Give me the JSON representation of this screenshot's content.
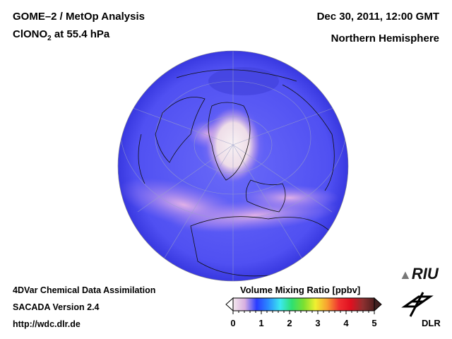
{
  "header": {
    "title": "GOME–2 / MetOp Analysis",
    "species": "ClONO",
    "species_sub": "2",
    "level": " at 55.4 hPa",
    "datetime": "Dec 30, 2011, 12:00 GMT",
    "region": "Northern Hemisphere"
  },
  "footer": {
    "line1": "4DVar Chemical Data Assimilation",
    "line2": "SACADA Version 2.4",
    "url": "http://wdc.dlr.de"
  },
  "colorbar": {
    "label": "Volume Mixing Ratio [ppbv]",
    "ticks": [
      "0",
      "1",
      "2",
      "3",
      "4",
      "5"
    ],
    "min": 0,
    "max": 5,
    "colors": [
      "#f4e8ee",
      "#d8b0e0",
      "#2a3cff",
      "#2a8cff",
      "#3ce8f0",
      "#2ee070",
      "#7ce030",
      "#f0f030",
      "#f8a030",
      "#f03030",
      "#e01020",
      "#903030",
      "#502020"
    ]
  },
  "logos": {
    "riu": "RIU",
    "dlr": "DLR"
  }
}
